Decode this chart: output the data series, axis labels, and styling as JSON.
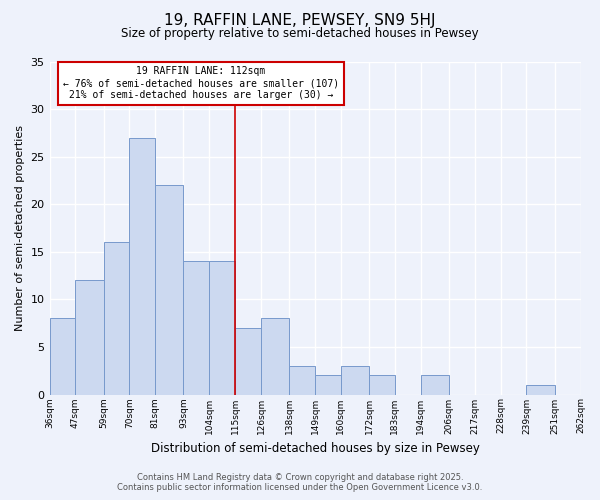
{
  "title": "19, RAFFIN LANE, PEWSEY, SN9 5HJ",
  "subtitle": "Size of property relative to semi-detached houses in Pewsey",
  "xlabel": "Distribution of semi-detached houses by size in Pewsey",
  "ylabel": "Number of semi-detached properties",
  "bar_color": "#ccd9f0",
  "bar_edge_color": "#7799cc",
  "background_color": "#eef2fb",
  "grid_color": "#ffffff",
  "annotation_box_edgecolor": "#cc0000",
  "annotation_line_color": "#cc0000",
  "bins": [
    36,
    47,
    59,
    70,
    81,
    93,
    104,
    115,
    126,
    138,
    149,
    160,
    172,
    183,
    194,
    206,
    217,
    228,
    239,
    251,
    262
  ],
  "counts": [
    8,
    12,
    16,
    27,
    22,
    14,
    14,
    7,
    8,
    3,
    2,
    3,
    2,
    0,
    2,
    0,
    0,
    0,
    1,
    0
  ],
  "tick_labels": [
    "36sqm",
    "47sqm",
    "59sqm",
    "70sqm",
    "81sqm",
    "93sqm",
    "104sqm",
    "115sqm",
    "126sqm",
    "138sqm",
    "149sqm",
    "160sqm",
    "172sqm",
    "183sqm",
    "194sqm",
    "206sqm",
    "217sqm",
    "228sqm",
    "239sqm",
    "251sqm",
    "262sqm"
  ],
  "vline_x": 115,
  "annotation_title": "19 RAFFIN LANE: 112sqm",
  "annotation_line1": "← 76% of semi-detached houses are smaller (107)",
  "annotation_line2": "21% of semi-detached houses are larger (30) →",
  "ylim": [
    0,
    35
  ],
  "yticks": [
    0,
    5,
    10,
    15,
    20,
    25,
    30,
    35
  ],
  "footer_line1": "Contains HM Land Registry data © Crown copyright and database right 2025.",
  "footer_line2": "Contains public sector information licensed under the Open Government Licence v3.0."
}
